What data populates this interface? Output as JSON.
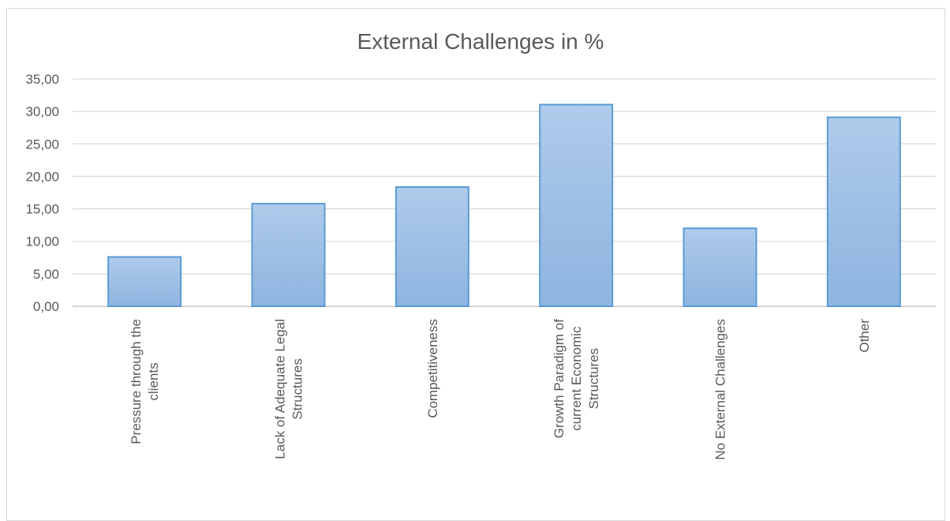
{
  "chart_data": {
    "type": "bar",
    "title": "External Challenges in %",
    "categories": [
      [
        "Pressure through the",
        "clients"
      ],
      [
        "Lack of Adequate Legal",
        "Structures"
      ],
      [
        "Competitiveness"
      ],
      [
        "Growth Paradigm of",
        "current Economic",
        "Structures"
      ],
      [
        "No External Challenges"
      ],
      [
        "Other"
      ]
    ],
    "values": [
      7.6,
      15.8,
      18.35,
      31.05,
      12.0,
      29.1
    ],
    "ylim": [
      0,
      35
    ],
    "yticks": [
      "0,00",
      "5,00",
      "10,00",
      "15,00",
      "20,00",
      "25,00",
      "30,00",
      "35,00"
    ],
    "xlabel": "",
    "ylabel": "",
    "grid": true,
    "legend": "none",
    "colors": {
      "bar_top": "#aecbea",
      "bar_bottom": "#8eb4e0",
      "bar_border": "#5b9bd5",
      "gridline": "#d9d9d9",
      "text": "#595959"
    }
  }
}
